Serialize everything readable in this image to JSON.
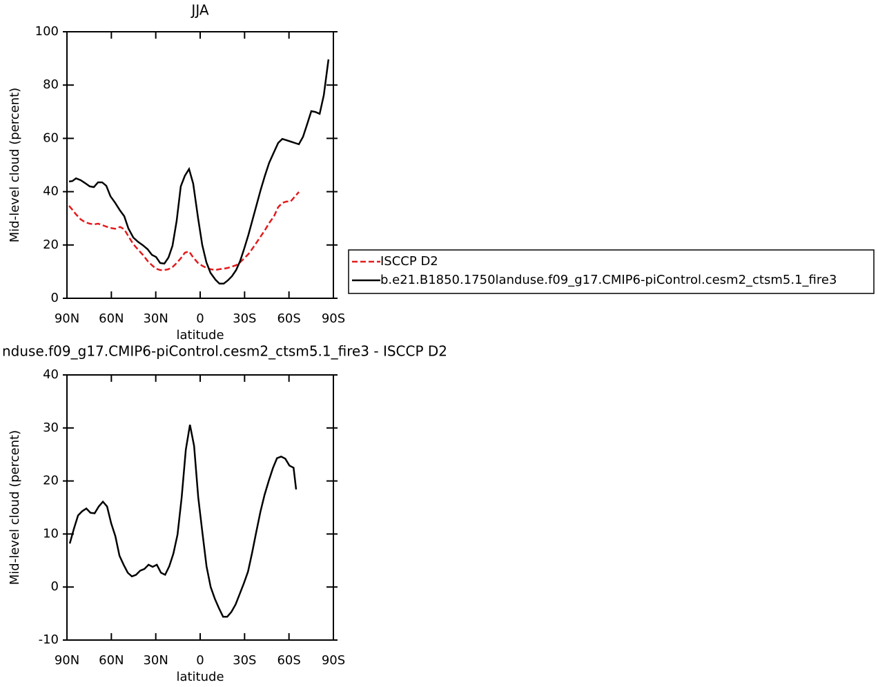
{
  "chart_data": [
    {
      "type": "line",
      "title": "JJA",
      "xlabel": "latitude",
      "ylabel": "Mid-level cloud (percent)",
      "xlim": [
        90,
        -90
      ],
      "xticks": [
        {
          "value": 90,
          "label": "90N"
        },
        {
          "value": 60,
          "label": "60N"
        },
        {
          "value": 30,
          "label": "30N"
        },
        0,
        {
          "value": -30,
          "label": "30S"
        },
        {
          "value": -60,
          "label": "60S"
        },
        {
          "value": -90,
          "label": "90S"
        }
      ],
      "ylim": [
        0,
        100
      ],
      "yticks": [
        0,
        20,
        40,
        60,
        80,
        100
      ],
      "x": [
        88.6,
        86.3,
        83.9,
        80.7,
        77.9,
        74.6,
        71.8,
        69,
        66.2,
        63.4,
        60.6,
        57.4,
        54.1,
        51.3,
        48.5,
        45.2,
        42,
        38.7,
        35.5,
        32.6,
        29.8,
        27,
        24.2,
        21.4,
        18.7,
        15.9,
        13.1,
        10.3,
        7.5,
        4.7,
        1.4,
        -1.4,
        -4.2,
        -7,
        -10.3,
        -13,
        -15.9,
        -18.7,
        -21.5,
        -24.3,
        -27,
        -29.8,
        -32.6,
        -35.4,
        -38.2,
        -41,
        -43.8,
        -46.6,
        -49.9,
        -52.7,
        -55.5,
        -58.3,
        -61.1,
        -63.9,
        -66.7,
        -69.5,
        -72.3,
        -75.1,
        -77.9,
        -80.7,
        -83.5,
        -86.7
      ],
      "series": [
        {
          "name": "ISCCP D2",
          "color": "#e41a1c",
          "style": "dashed",
          "values": [
            34.7,
            33.2,
            31.5,
            29.6,
            28.6,
            28,
            27.7,
            28,
            27.5,
            26.9,
            26.4,
            26.1,
            26.8,
            25.9,
            23.3,
            20.3,
            18.3,
            16.3,
            14,
            12.4,
            11.1,
            10.6,
            10.6,
            10.9,
            11.7,
            13.2,
            15,
            17.1,
            17.6,
            15.3,
            13.2,
            12.2,
            11.4,
            10.9,
            10.6,
            10.9,
            11.1,
            11.4,
            11.9,
            12.4,
            13.5,
            15,
            16.6,
            18.7,
            21,
            23.3,
            25.6,
            28.2,
            30.8,
            34.2,
            35.8,
            36.3,
            36.3,
            38.1,
            39.9,
            null,
            null,
            null,
            null,
            null,
            null,
            null
          ]
        },
        {
          "name": "b.e21.B1850.1750landuse.f09_g17.CMIP6-piControl.cesm2_ctsm5.1_fire3",
          "color": "#000000",
          "style": "solid",
          "values": [
            43.8,
            44,
            45,
            44.3,
            43.3,
            42,
            41.7,
            43.5,
            43.5,
            42.2,
            38.3,
            35.8,
            32.9,
            30.8,
            26.2,
            22.8,
            21.2,
            19.9,
            18.4,
            16.3,
            15.5,
            13.2,
            13,
            15.3,
            19.7,
            29,
            42,
            46,
            48.5,
            43,
            30,
            20,
            13.5,
            9.5,
            7,
            5.5,
            5.5,
            6.7,
            8.3,
            10.6,
            14,
            18.7,
            23.8,
            29.5,
            35.2,
            40.9,
            46.1,
            50.8,
            54.9,
            58.3,
            59.8,
            59.3,
            58.8,
            58.3,
            57.8,
            60.6,
            65.3,
            70.2,
            69.9,
            69.2,
            76.2,
            89.6
          ]
        }
      ]
    },
    {
      "type": "line",
      "title": "nduse.f09_g17.CMIP6-piControl.cesm2_ctsm5.1_fire3 - ISCCP D2",
      "xlabel": "latitude",
      "ylabel": "Mid-level cloud (percent)",
      "xlim": [
        90,
        -90
      ],
      "xticks": [
        {
          "value": 90,
          "label": "90N"
        },
        {
          "value": 60,
          "label": "60N"
        },
        {
          "value": 30,
          "label": "30N"
        },
        0,
        {
          "value": -30,
          "label": "30S"
        },
        {
          "value": -60,
          "label": "60S"
        },
        {
          "value": -90,
          "label": "90S"
        }
      ],
      "ylim": [
        -10,
        40
      ],
      "yticks": [
        -10,
        0,
        10,
        20,
        30,
        40
      ],
      "x": [
        88.1,
        85.3,
        82.5,
        79.7,
        76.9,
        74.1,
        71.3,
        68.5,
        65.7,
        62.9,
        60.1,
        57.3,
        54.5,
        51.7,
        48.9,
        46.1,
        43.3,
        40.5,
        37.7,
        34.9,
        32.1,
        29.3,
        26.5,
        23.7,
        20.9,
        18.1,
        15.3,
        12.5,
        9.7,
        6.9,
        4.1,
        1.3,
        -1.5,
        -4.3,
        -7.1,
        -9.9,
        -12.7,
        -15.5,
        -18.3,
        -21.1,
        -23.9,
        -26.7,
        -29.5,
        -32.3,
        -35.1,
        -37.9,
        -40.7,
        -43.5,
        -46.3,
        -49.1,
        -51.9,
        -54.7,
        -57.5,
        -60.3,
        -63.1,
        -64.8
      ],
      "series": [
        {
          "color": "#000000",
          "style": "solid",
          "values": [
            8.2,
            11,
            13.5,
            14.3,
            14.8,
            14,
            13.9,
            15.2,
            16.1,
            15.2,
            12,
            9.6,
            5.9,
            4.2,
            2.7,
            2,
            2.3,
            3.1,
            3.4,
            4.2,
            3.8,
            4.2,
            2.7,
            2.3,
            3.9,
            6.3,
            9.9,
            16.9,
            25.9,
            30.6,
            26.6,
            16.9,
            10.3,
            3.9,
            0,
            -2.2,
            -4,
            -5.6,
            -5.6,
            -4.7,
            -3.3,
            -1.3,
            0.7,
            2.9,
            6.5,
            10.4,
            14.2,
            17.4,
            20,
            22.4,
            24.3,
            24.6,
            24.2,
            22.9,
            22.5,
            18.4
          ]
        }
      ]
    }
  ]
}
